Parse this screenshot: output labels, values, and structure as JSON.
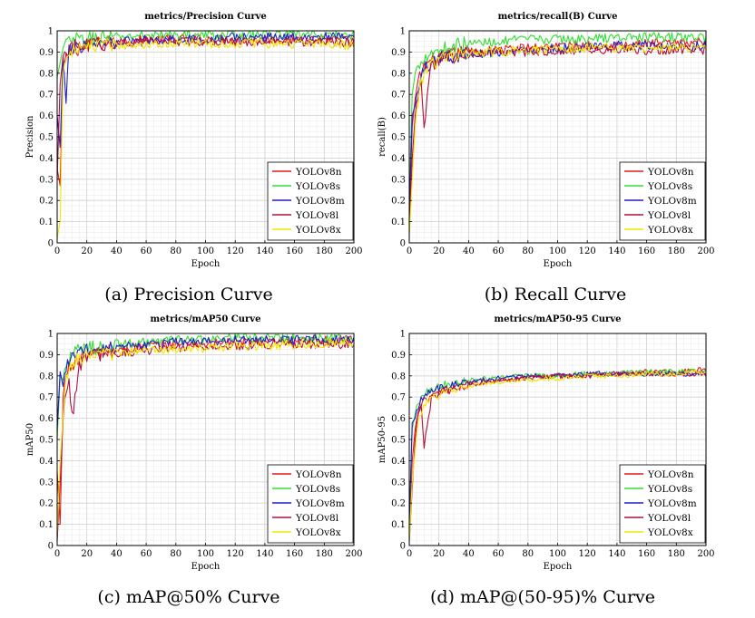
{
  "series_colors": {
    "YOLOv8n": "#e41a1c",
    "YOLOv8s": "#33dd33",
    "YOLOv8m": "#1f1fcc",
    "YOLOv8l": "#b0103c",
    "YOLOv8x": "#f2e600"
  },
  "captions": [
    "(a) Precision Curve",
    "(b) Recall Curve",
    "(c) mAP@50% Curve",
    "(d) mAP@(50-95)% Curve"
  ],
  "chart_data": [
    {
      "type": "line",
      "title": "metrics/Precision Curve",
      "xlabel": "Epoch",
      "ylabel": "Precision",
      "xlim": [
        0,
        200
      ],
      "ylim": [
        0,
        1
      ],
      "xticks": [
        0,
        20,
        40,
        60,
        80,
        100,
        120,
        140,
        160,
        180,
        200
      ],
      "yticks": [
        0,
        0.1,
        0.2,
        0.3,
        0.4,
        0.5,
        0.6,
        0.7,
        0.8,
        0.9,
        1
      ],
      "grid": true,
      "legend": "bottom-right",
      "x": [
        0,
        2,
        4,
        6,
        8,
        10,
        15,
        20,
        30,
        40,
        60,
        80,
        100,
        120,
        140,
        160,
        180,
        200
      ],
      "series": [
        {
          "name": "YOLOv8n",
          "values": [
            0.35,
            0.27,
            0.82,
            0.86,
            0.88,
            0.9,
            0.92,
            0.93,
            0.94,
            0.95,
            0.96,
            0.96,
            0.96,
            0.96,
            0.96,
            0.96,
            0.96,
            0.95
          ]
        },
        {
          "name": "YOLOv8s",
          "values": [
            0.78,
            0.85,
            0.92,
            0.94,
            0.95,
            0.95,
            0.96,
            0.96,
            0.97,
            0.97,
            0.98,
            0.98,
            0.98,
            0.98,
            0.98,
            0.98,
            0.98,
            0.98
          ]
        },
        {
          "name": "YOLOv8m",
          "values": [
            0.6,
            0.45,
            0.88,
            0.65,
            0.9,
            0.92,
            0.93,
            0.94,
            0.95,
            0.95,
            0.96,
            0.96,
            0.96,
            0.97,
            0.97,
            0.97,
            0.97,
            0.97
          ]
        },
        {
          "name": "YOLOv8l",
          "values": [
            0.3,
            0.75,
            0.88,
            0.9,
            0.91,
            0.92,
            0.93,
            0.93,
            0.94,
            0.94,
            0.95,
            0.95,
            0.95,
            0.95,
            0.95,
            0.95,
            0.95,
            0.94
          ]
        },
        {
          "name": "YOLOv8x",
          "values": [
            0.02,
            0.1,
            0.8,
            0.87,
            0.9,
            0.91,
            0.92,
            0.92,
            0.93,
            0.93,
            0.94,
            0.94,
            0.94,
            0.94,
            0.94,
            0.94,
            0.94,
            0.93
          ]
        }
      ]
    },
    {
      "type": "line",
      "title": "metrics/recall(B) Curve",
      "xlabel": "Epoch",
      "ylabel": "recall(B)",
      "xlim": [
        0,
        200
      ],
      "ylim": [
        0,
        1
      ],
      "xticks": [
        0,
        20,
        40,
        60,
        80,
        100,
        120,
        140,
        160,
        180,
        200
      ],
      "yticks": [
        0,
        0.1,
        0.2,
        0.3,
        0.4,
        0.5,
        0.6,
        0.7,
        0.8,
        0.9,
        1
      ],
      "grid": true,
      "legend": "bottom-right",
      "x": [
        0,
        2,
        4,
        6,
        8,
        10,
        15,
        20,
        30,
        40,
        60,
        80,
        100,
        120,
        140,
        160,
        180,
        200
      ],
      "series": [
        {
          "name": "YOLOv8n",
          "values": [
            0.1,
            0.55,
            0.68,
            0.75,
            0.8,
            0.83,
            0.86,
            0.87,
            0.89,
            0.9,
            0.91,
            0.92,
            0.93,
            0.93,
            0.93,
            0.94,
            0.94,
            0.95
          ]
        },
        {
          "name": "YOLOv8s",
          "values": [
            0.2,
            0.7,
            0.8,
            0.83,
            0.86,
            0.88,
            0.9,
            0.91,
            0.93,
            0.94,
            0.95,
            0.96,
            0.96,
            0.96,
            0.97,
            0.97,
            0.97,
            0.97
          ]
        },
        {
          "name": "YOLOv8m",
          "values": [
            0.15,
            0.6,
            0.65,
            0.72,
            0.78,
            0.82,
            0.85,
            0.87,
            0.88,
            0.89,
            0.9,
            0.91,
            0.92,
            0.92,
            0.93,
            0.93,
            0.93,
            0.93
          ]
        },
        {
          "name": "YOLOv8l",
          "values": [
            0.05,
            0.4,
            0.6,
            0.7,
            0.75,
            0.55,
            0.84,
            0.86,
            0.88,
            0.89,
            0.9,
            0.9,
            0.9,
            0.91,
            0.91,
            0.91,
            0.91,
            0.91
          ]
        },
        {
          "name": "YOLOv8x",
          "values": [
            0.03,
            0.3,
            0.55,
            0.68,
            0.75,
            0.8,
            0.84,
            0.86,
            0.88,
            0.89,
            0.9,
            0.91,
            0.91,
            0.92,
            0.92,
            0.92,
            0.92,
            0.92
          ]
        }
      ]
    },
    {
      "type": "line",
      "title": "metrics/mAP50 Curve",
      "xlabel": "Epoch",
      "ylabel": "mAP50",
      "xlim": [
        0,
        200
      ],
      "ylim": [
        0,
        1
      ],
      "xticks": [
        0,
        20,
        40,
        60,
        80,
        100,
        120,
        140,
        160,
        180,
        200
      ],
      "yticks": [
        0,
        0.1,
        0.2,
        0.3,
        0.4,
        0.5,
        0.6,
        0.7,
        0.8,
        0.9,
        1
      ],
      "grid": true,
      "legend": "bottom-right",
      "x": [
        0,
        2,
        4,
        6,
        8,
        10,
        15,
        20,
        30,
        40,
        60,
        80,
        100,
        120,
        140,
        160,
        180,
        200
      ],
      "series": [
        {
          "name": "YOLOv8n",
          "values": [
            0.35,
            0.1,
            0.7,
            0.8,
            0.84,
            0.86,
            0.88,
            0.9,
            0.91,
            0.92,
            0.94,
            0.95,
            0.95,
            0.96,
            0.96,
            0.96,
            0.97,
            0.97
          ]
        },
        {
          "name": "YOLOv8s",
          "values": [
            0.5,
            0.8,
            0.78,
            0.85,
            0.88,
            0.9,
            0.92,
            0.93,
            0.94,
            0.95,
            0.96,
            0.97,
            0.97,
            0.98,
            0.98,
            0.98,
            0.98,
            0.98
          ]
        },
        {
          "name": "YOLOv8m",
          "values": [
            0.55,
            0.82,
            0.75,
            0.84,
            0.87,
            0.89,
            0.91,
            0.92,
            0.93,
            0.94,
            0.95,
            0.96,
            0.96,
            0.97,
            0.97,
            0.97,
            0.97,
            0.97
          ]
        },
        {
          "name": "YOLOv8l",
          "values": [
            0.02,
            0.3,
            0.6,
            0.75,
            0.8,
            0.6,
            0.85,
            0.88,
            0.9,
            0.91,
            0.92,
            0.93,
            0.94,
            0.94,
            0.95,
            0.95,
            0.95,
            0.95
          ]
        },
        {
          "name": "YOLOv8x",
          "values": [
            0.05,
            0.4,
            0.62,
            0.78,
            0.83,
            0.86,
            0.88,
            0.89,
            0.9,
            0.91,
            0.92,
            0.93,
            0.93,
            0.94,
            0.94,
            0.95,
            0.95,
            0.96
          ]
        }
      ]
    },
    {
      "type": "line",
      "title": "metrics/mAP50-95 Curve",
      "xlabel": "Epoch",
      "ylabel": "mAP50-95",
      "xlim": [
        0,
        200
      ],
      "ylim": [
        0,
        1
      ],
      "xticks": [
        0,
        20,
        40,
        60,
        80,
        100,
        120,
        140,
        160,
        180,
        200
      ],
      "yticks": [
        0,
        0.1,
        0.2,
        0.3,
        0.4,
        0.5,
        0.6,
        0.7,
        0.8,
        0.9,
        1
      ],
      "grid": true,
      "legend": "bottom-right",
      "x": [
        0,
        2,
        4,
        6,
        8,
        10,
        15,
        20,
        30,
        40,
        60,
        80,
        100,
        120,
        140,
        160,
        180,
        200
      ],
      "series": [
        {
          "name": "YOLOv8n",
          "values": [
            0.05,
            0.4,
            0.55,
            0.62,
            0.66,
            0.68,
            0.7,
            0.72,
            0.74,
            0.76,
            0.78,
            0.79,
            0.8,
            0.8,
            0.81,
            0.82,
            0.82,
            0.83
          ]
        },
        {
          "name": "YOLOv8s",
          "values": [
            0.1,
            0.55,
            0.62,
            0.68,
            0.7,
            0.72,
            0.74,
            0.75,
            0.77,
            0.78,
            0.79,
            0.8,
            0.8,
            0.81,
            0.81,
            0.82,
            0.82,
            0.82
          ]
        },
        {
          "name": "YOLOv8m",
          "values": [
            0.1,
            0.58,
            0.6,
            0.66,
            0.69,
            0.71,
            0.73,
            0.74,
            0.76,
            0.77,
            0.79,
            0.8,
            0.8,
            0.81,
            0.81,
            0.81,
            0.81,
            0.81
          ]
        },
        {
          "name": "YOLOv8l",
          "values": [
            0.02,
            0.27,
            0.5,
            0.62,
            0.65,
            0.46,
            0.7,
            0.72,
            0.74,
            0.76,
            0.78,
            0.79,
            0.8,
            0.8,
            0.81,
            0.81,
            0.81,
            0.81
          ]
        },
        {
          "name": "YOLOv8x",
          "values": [
            0.02,
            0.3,
            0.45,
            0.58,
            0.63,
            0.66,
            0.69,
            0.71,
            0.74,
            0.75,
            0.77,
            0.78,
            0.79,
            0.8,
            0.8,
            0.81,
            0.81,
            0.82
          ]
        }
      ]
    }
  ]
}
